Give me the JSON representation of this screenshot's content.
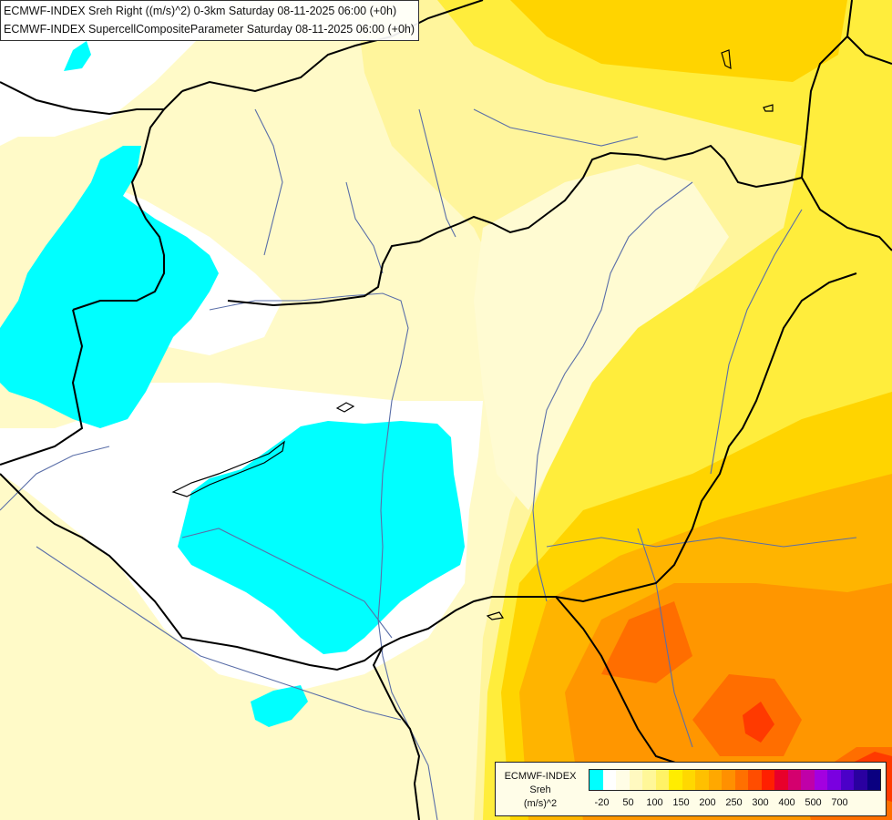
{
  "titles": {
    "line1": "ECMWF-INDEX Sreh Right ((m/s)^2) 0-3km Saturday 08-11-2025 06:00 (+0h)",
    "line2": "ECMWF-INDEX SupercellCompositeParameter Saturday 08-11-2025 06:00 (+0h)"
  },
  "legend": {
    "title_line1": "ECMWF-INDEX",
    "title_line2": "Sreh",
    "title_line3": "(m/s)^2",
    "colors": [
      "#00ffff",
      "#ffffff",
      "#fffde6",
      "#fff9c0",
      "#fff799",
      "#fff266",
      "#ffed00",
      "#ffd800",
      "#ffc000",
      "#ffa800",
      "#ff9000",
      "#ff7000",
      "#ff4d00",
      "#ff2000",
      "#e8002a",
      "#d4006e",
      "#c000a8",
      "#a300e0",
      "#7a00e0",
      "#4b00c8",
      "#2a00a0",
      "#0a0080"
    ],
    "ticks": [
      {
        "label": "-20",
        "index": 1
      },
      {
        "label": "50",
        "index": 3
      },
      {
        "label": "100",
        "index": 5
      },
      {
        "label": "150",
        "index": 7
      },
      {
        "label": "200",
        "index": 9
      },
      {
        "label": "250",
        "index": 11
      },
      {
        "label": "300",
        "index": 13
      },
      {
        "label": "400",
        "index": 15
      },
      {
        "label": "500",
        "index": 17
      },
      {
        "label": "700",
        "index": 19
      }
    ]
  },
  "map_colors": {
    "background": "#fffac8",
    "white": "#ffffff",
    "cyan": "#00ffff",
    "pale": "#fffbd2",
    "light_yellow": "#fff59c",
    "yellow": "#ffed3c",
    "gold": "#ffd400",
    "orange_light": "#ffb400",
    "orange": "#ff9600",
    "orange_dark": "#ff6e00",
    "red": "#ff3a00",
    "border": "#000000",
    "river": "#5a6ea8"
  }
}
